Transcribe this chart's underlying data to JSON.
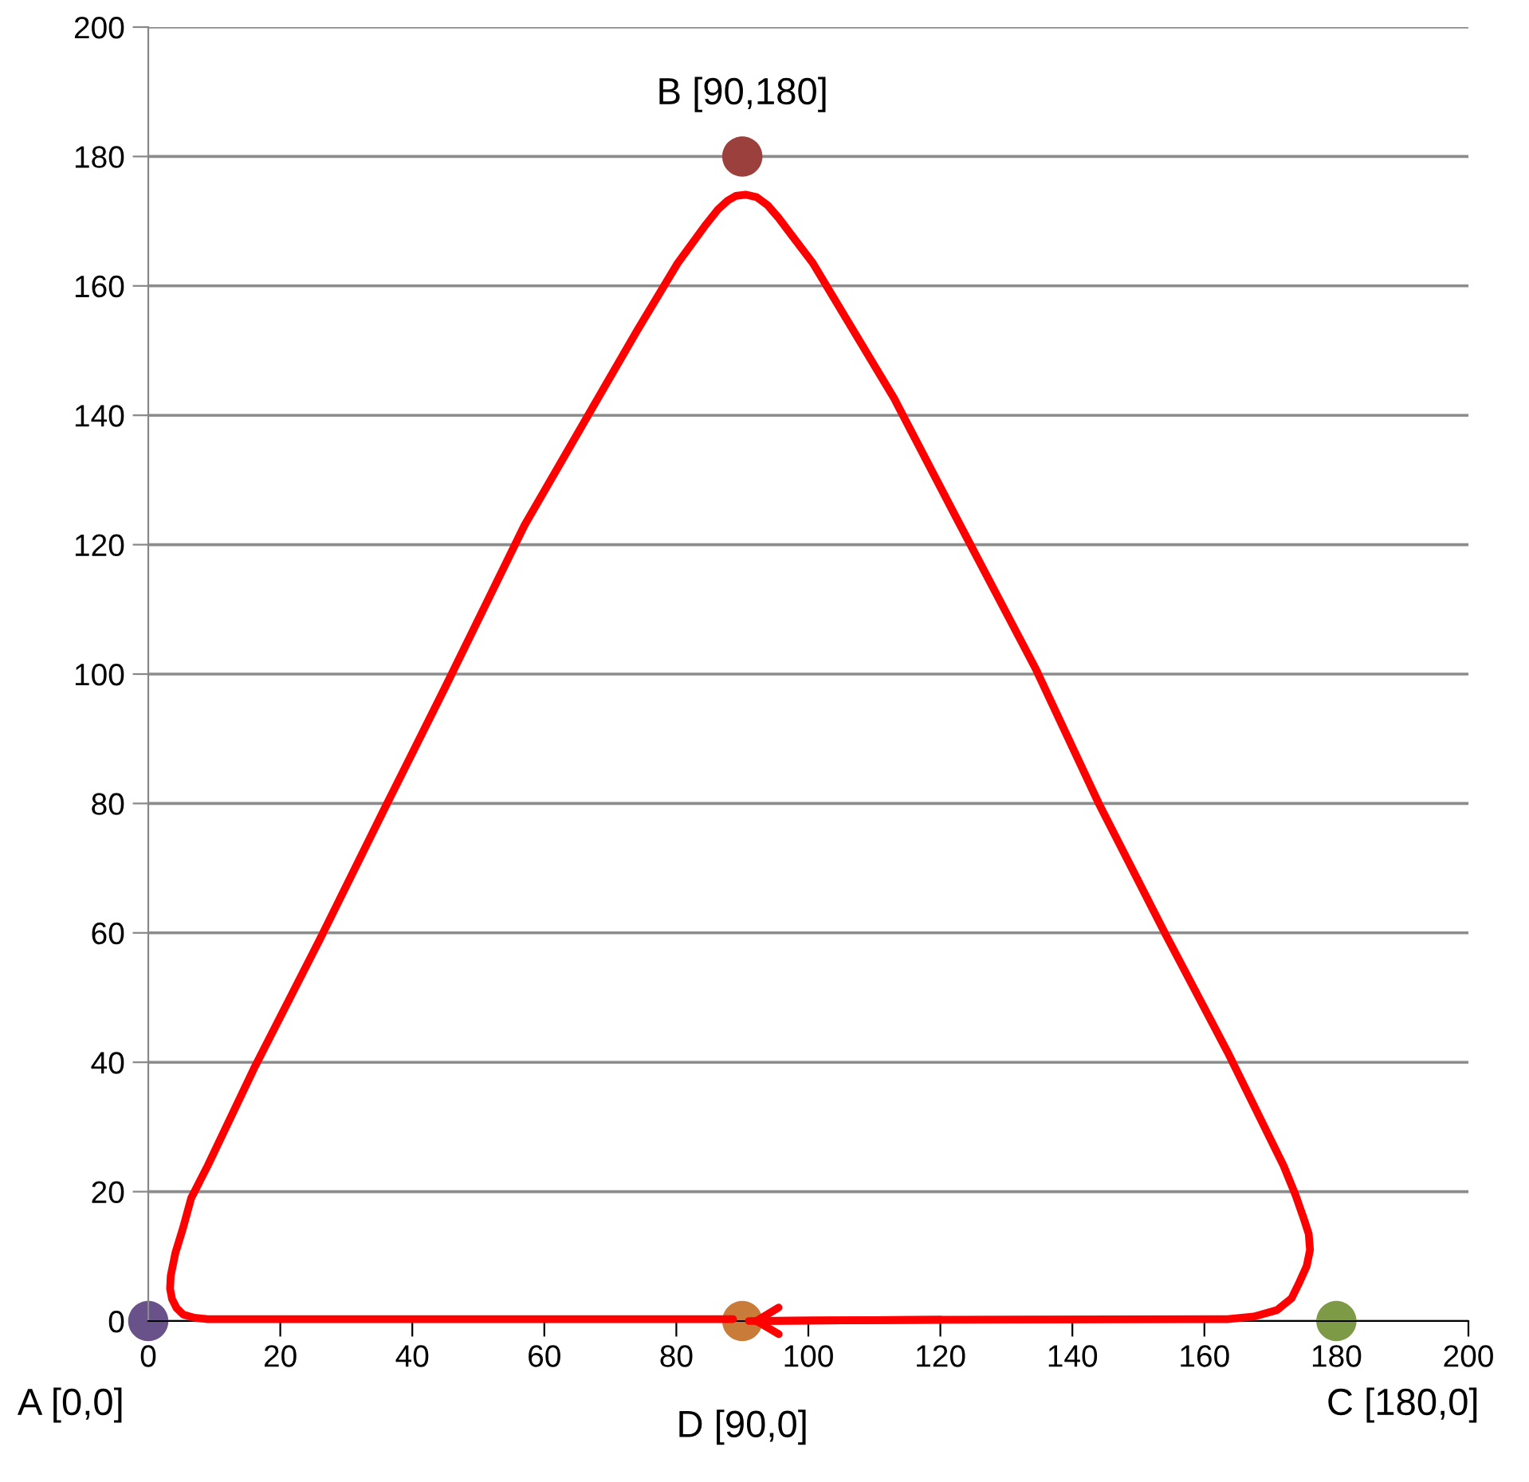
{
  "chart_data": {
    "type": "line",
    "xlim": [
      0,
      200
    ],
    "xticks": [
      0,
      20,
      40,
      60,
      80,
      100,
      120,
      140,
      160,
      180,
      200
    ],
    "ylim": [
      0,
      200
    ],
    "yticks": [
      0,
      20,
      40,
      60,
      80,
      100,
      120,
      140,
      160,
      180,
      200
    ],
    "grid": "y",
    "legend": false,
    "series": [
      {
        "color": "#ff0000",
        "marker": "none",
        "line_style": "solid",
        "x": [
          91,
          120,
          163.5,
          167.5,
          171,
          173.2,
          174.4,
          175.5,
          176,
          175.8,
          175,
          173.8,
          172,
          163.5,
          154,
          144,
          134.5,
          122.5,
          113,
          100.7,
          97.5,
          95.5,
          93.8,
          92.2,
          90.5,
          89,
          87.8,
          86.3,
          84.5,
          80.2,
          74,
          57,
          45,
          35.5,
          26,
          16,
          9,
          6.5,
          5.3,
          4.1,
          3.4,
          3.3,
          3.6,
          4.3,
          5.3,
          7,
          9,
          26,
          50,
          88.6
        ],
        "values": [
          0,
          0.2,
          0.3,
          0.7,
          1.7,
          3.5,
          6,
          8.5,
          11,
          13.5,
          16,
          19.5,
          24,
          41.6,
          60,
          80,
          100.7,
          124,
          142.6,
          163.5,
          167.8,
          170.5,
          172.5,
          173.7,
          174.1,
          173.9,
          173.2,
          171.8,
          169.5,
          163.5,
          153,
          123,
          98,
          78.6,
          59,
          39,
          24,
          19,
          14.5,
          10.5,
          7,
          5,
          3.4,
          2,
          1,
          0.5,
          0.3,
          0.3,
          0.3,
          0.3
        ]
      },
      {
        "type": "scatter",
        "name": "A [0,0]",
        "color": "#69518a",
        "marker": "circle",
        "x": [
          0
        ],
        "values": [
          0
        ]
      },
      {
        "type": "scatter",
        "name": "B [90,180]",
        "color": "#9c403d",
        "marker": "circle",
        "x": [
          90
        ],
        "values": [
          180
        ]
      },
      {
        "type": "scatter",
        "name": "C [180,0]",
        "color": "#7d9a46",
        "marker": "circle",
        "x": [
          180
        ],
        "values": [
          0
        ]
      },
      {
        "type": "scatter",
        "name": "D [90,0]",
        "color": "#c97b3a",
        "marker": "circle",
        "x": [
          90
        ],
        "values": [
          0
        ]
      }
    ]
  }
}
